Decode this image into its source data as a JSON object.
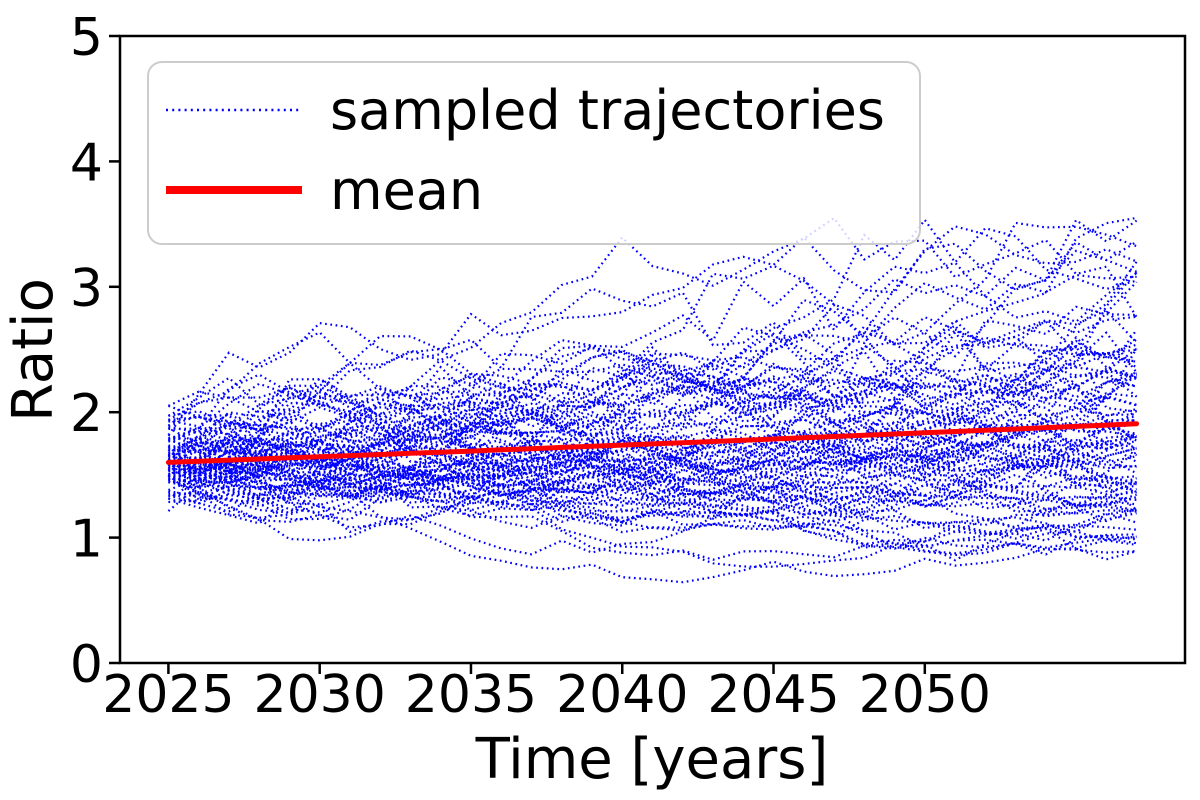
{
  "chart_data": {
    "type": "line",
    "title": "",
    "xlabel": "Time [years]",
    "ylabel": "Ratio",
    "x_ticks": [
      2025,
      2030,
      2035,
      2040,
      2045,
      2050
    ],
    "y_ticks": [
      0,
      1,
      2,
      3,
      4,
      5
    ],
    "xlim": [
      2023.4,
      2058.6
    ],
    "ylim": [
      0,
      5
    ],
    "grid": false,
    "background_color": "#ffffff",
    "axis_color": "#000000",
    "series": [
      {
        "name": "sampled trajectories",
        "kind": "stochastic-ensemble",
        "color": "#0000ff",
        "linestyle": "dotted",
        "count": 100,
        "x_start": 2025,
        "x_end": 2057,
        "x_step": 1,
        "points_per_trajectory": 33,
        "start_value_mean": 1.6,
        "start_value_range": [
          1.17,
          2.05
        ],
        "end_value_range": [
          0.65,
          3.5
        ],
        "start_log_sigma": 0.11,
        "step_log_sigma": 0.065,
        "step_log_drift": 0.0034,
        "value_bounds": [
          0.62,
          3.55
        ],
        "seed": 7
      },
      {
        "name": "mean",
        "kind": "line",
        "color": "#ff0000",
        "linestyle": "solid",
        "x": [
          2025,
          2026,
          2027,
          2028,
          2029,
          2030,
          2031,
          2032,
          2033,
          2034,
          2035,
          2036,
          2037,
          2038,
          2039,
          2040,
          2041,
          2042,
          2043,
          2044,
          2045,
          2046,
          2047,
          2048,
          2049,
          2050,
          2051,
          2052,
          2053,
          2054,
          2055,
          2056,
          2057
        ],
        "values": [
          1.6,
          1.609,
          1.618,
          1.627,
          1.636,
          1.645,
          1.654,
          1.663,
          1.672,
          1.681,
          1.69,
          1.7,
          1.709,
          1.719,
          1.728,
          1.738,
          1.747,
          1.757,
          1.766,
          1.776,
          1.786,
          1.796,
          1.806,
          1.816,
          1.826,
          1.836,
          1.846,
          1.856,
          1.866,
          1.877,
          1.887,
          1.897,
          1.908
        ]
      }
    ],
    "legend": {
      "location": "upper left",
      "entries": [
        {
          "label": "sampled trajectories",
          "color": "#0000ff",
          "linestyle": "dotted"
        },
        {
          "label": "mean",
          "color": "#ff0000",
          "linestyle": "solid"
        }
      ]
    }
  }
}
